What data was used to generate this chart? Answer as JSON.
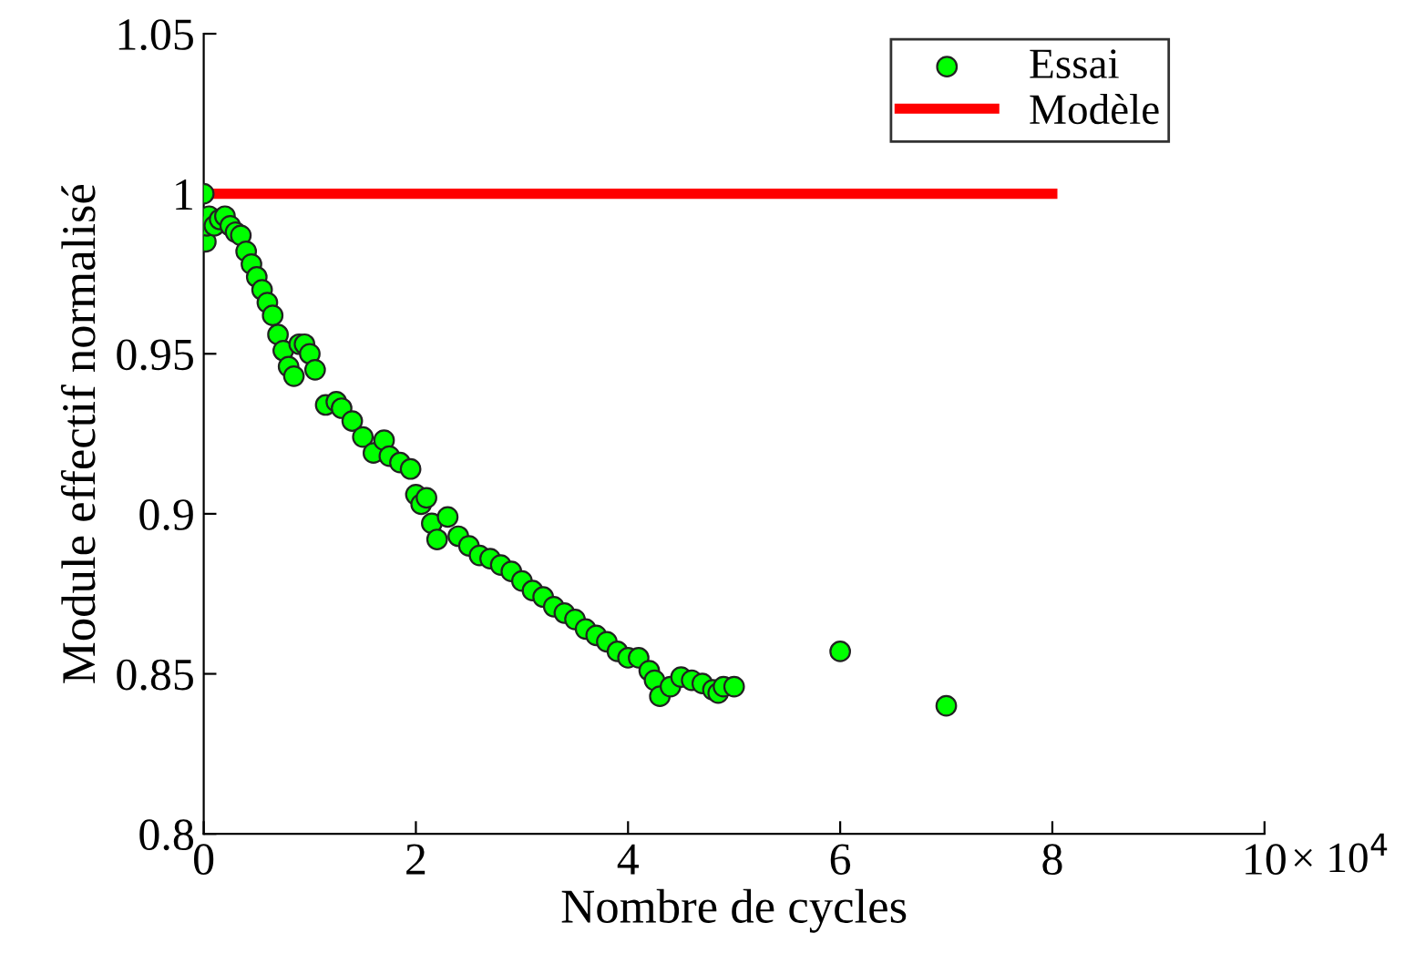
{
  "chart_data": {
    "type": "scatter",
    "xlabel": "Nombre de cycles",
    "ylabel": "Module effectif normalisé",
    "xlim": [
      0,
      10
    ],
    "xticks": [
      0,
      2,
      4,
      6,
      8,
      10
    ],
    "ylim": [
      0.8,
      1.05
    ],
    "yticks": [
      0.8,
      0.85,
      0.9,
      0.95,
      1,
      1.05
    ],
    "annotations": [
      "× 10$^{4}$"
    ],
    "legend": "top right",
    "grid": false,
    "series": [
      {
        "name": "Essai",
        "marker": "circle",
        "color": "#00ff00",
        "x": [
          0,
          0.02,
          0.03,
          0.05,
          0.1,
          0.15,
          0.2,
          0.25,
          0.3,
          0.35,
          0.4,
          0.45,
          0.5,
          0.55,
          0.6,
          0.65,
          0.7,
          0.75,
          0.8,
          0.85,
          0.9,
          0.95,
          1.0,
          1.05,
          1.15,
          1.25,
          1.3,
          1.4,
          1.5,
          1.6,
          1.7,
          1.75,
          1.85,
          1.95,
          2.0,
          2.05,
          2.1,
          2.15,
          2.2,
          2.3,
          2.4,
          2.5,
          2.6,
          2.7,
          2.8,
          2.9,
          3.0,
          3.1,
          3.2,
          3.3,
          3.4,
          3.5,
          3.6,
          3.7,
          3.8,
          3.9,
          4.0,
          4.1,
          4.2,
          4.25,
          4.3,
          4.4,
          4.5,
          4.6,
          4.7,
          4.8,
          4.85,
          4.9,
          5.0,
          6.0,
          7.0
        ],
        "values": [
          1.0,
          0.985,
          0.99,
          0.993,
          0.99,
          0.992,
          0.993,
          0.99,
          0.988,
          0.987,
          0.982,
          0.978,
          0.974,
          0.97,
          0.966,
          0.962,
          0.956,
          0.951,
          0.946,
          0.943,
          0.953,
          0.953,
          0.95,
          0.945,
          0.934,
          0.935,
          0.933,
          0.929,
          0.924,
          0.919,
          0.923,
          0.918,
          0.916,
          0.914,
          0.906,
          0.903,
          0.905,
          0.897,
          0.892,
          0.899,
          0.893,
          0.89,
          0.887,
          0.886,
          0.884,
          0.882,
          0.879,
          0.876,
          0.874,
          0.871,
          0.869,
          0.867,
          0.864,
          0.862,
          0.86,
          0.857,
          0.855,
          0.855,
          0.851,
          0.848,
          0.843,
          0.846,
          0.849,
          0.848,
          0.847,
          0.845,
          0.844,
          0.846,
          0.846,
          0.857,
          0.84
        ]
      },
      {
        "name": "Modèle",
        "type": "line",
        "line_style": "solid",
        "color": "#ff0000",
        "x": [
          0,
          8
        ],
        "values": [
          1,
          1
        ]
      }
    ]
  }
}
